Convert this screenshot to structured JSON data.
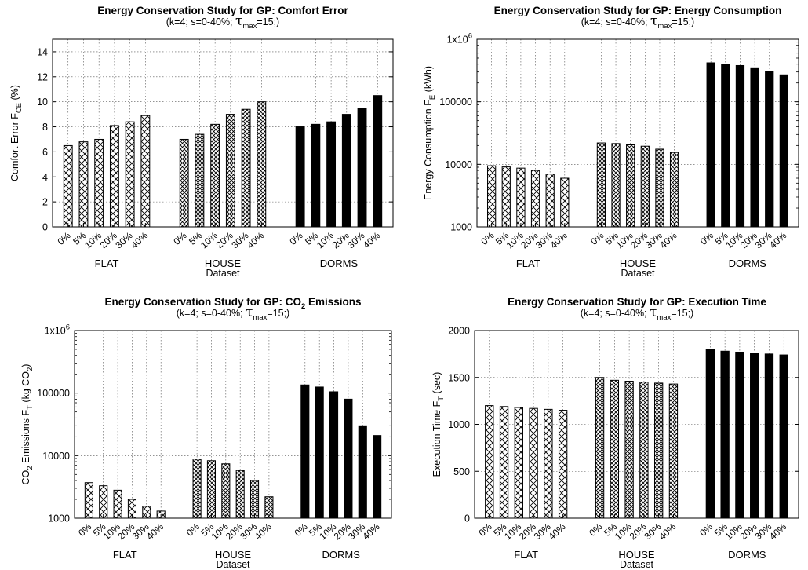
{
  "chart_data": [
    {
      "type": "bar",
      "title": "Energy Conservation Study for GP: Comfort Error",
      "subtitle": {
        "pre": "(k=4; s=0-40%; ",
        "tau": "τ",
        "sub": "max",
        "post": "=15;)"
      },
      "ylabel": {
        "main": "Comfort Error F",
        "sub": "CE",
        "post": " (%)"
      },
      "xlabel": "Dataset",
      "scale": "linear",
      "ylim": [
        0,
        15
      ],
      "yticks": [
        0,
        2,
        4,
        6,
        8,
        10,
        12,
        14
      ],
      "ytick_labels": [
        "0",
        "2",
        "4",
        "6",
        "8",
        "10",
        "12",
        "14"
      ],
      "groups": [
        {
          "name": "FLAT",
          "fill": "hatch-sparse",
          "categories": [
            "0%",
            "5%",
            "10%",
            "20%",
            "30%",
            "40%"
          ],
          "values": [
            6.5,
            6.8,
            7.0,
            8.1,
            8.4,
            8.9
          ]
        },
        {
          "name": "HOUSE",
          "fill": "hatch-dense",
          "categories": [
            "0%",
            "5%",
            "10%",
            "20%",
            "30%",
            "40%"
          ],
          "values": [
            7.0,
            7.4,
            8.2,
            9.0,
            9.4,
            10.0
          ]
        },
        {
          "name": "DORMS",
          "fill": "solid",
          "categories": [
            "0%",
            "5%",
            "10%",
            "20%",
            "30%",
            "40%"
          ],
          "values": [
            8.0,
            8.2,
            8.4,
            9.0,
            9.5,
            10.5
          ]
        }
      ],
      "grid": true
    },
    {
      "type": "bar",
      "title": "Energy Conservation Study for GP: Energy Consumption",
      "subtitle": {
        "pre": "(k=4; s=0-40%; ",
        "tau": "τ",
        "sub": "max",
        "post": "=15;)"
      },
      "ylabel": {
        "main": "Energy Consumption F",
        "sub": "E",
        "post": " (kWh)"
      },
      "xlabel": "Dataset",
      "scale": "log",
      "ylim": [
        1000,
        1000000
      ],
      "yticks": [
        1000,
        10000,
        100000,
        1000000
      ],
      "ytick_labels": [
        "1000",
        "10000",
        "100000",
        "1x10"
      ],
      "ytick_sup": [
        "",
        "",
        "",
        "6"
      ],
      "groups": [
        {
          "name": "FLAT",
          "fill": "hatch-sparse",
          "categories": [
            "0%",
            "5%",
            "10%",
            "20%",
            "30%",
            "40%"
          ],
          "values": [
            9500,
            9100,
            8700,
            8000,
            7000,
            6000
          ]
        },
        {
          "name": "HOUSE",
          "fill": "hatch-dense",
          "categories": [
            "0%",
            "5%",
            "10%",
            "20%",
            "30%",
            "40%"
          ],
          "values": [
            22000,
            21500,
            20500,
            19500,
            17500,
            15500
          ]
        },
        {
          "name": "DORMS",
          "fill": "solid",
          "categories": [
            "0%",
            "5%",
            "10%",
            "20%",
            "30%",
            "40%"
          ],
          "values": [
            420000,
            400000,
            380000,
            350000,
            310000,
            270000
          ]
        }
      ],
      "grid": true
    },
    {
      "type": "bar",
      "title": {
        "pre": "Energy Conservation Study for GP: CO",
        "sub": "2",
        "post": " Emissions"
      },
      "subtitle": {
        "pre": "(k=4; s=0-40%; ",
        "tau": "τ",
        "sub": "max",
        "post": "=15;)"
      },
      "ylabel": {
        "main": "CO",
        "sub": "2",
        "mid": " Emissions F",
        "sub2": "T",
        "post": " (kg CO",
        "sub3": "2",
        "end": ")"
      },
      "xlabel": "Dataset",
      "scale": "log",
      "ylim": [
        1000,
        1000000
      ],
      "yticks": [
        1000,
        10000,
        100000,
        1000000
      ],
      "ytick_labels": [
        "1000",
        "10000",
        "100000",
        "1x10"
      ],
      "ytick_sup": [
        "",
        "",
        "",
        "6"
      ],
      "groups": [
        {
          "name": "FLAT",
          "fill": "hatch-sparse",
          "categories": [
            "0%",
            "5%",
            "10%",
            "20%",
            "30%",
            "40%"
          ],
          "values": [
            3700,
            3300,
            2800,
            2000,
            1550,
            1300
          ]
        },
        {
          "name": "HOUSE",
          "fill": "hatch-dense",
          "categories": [
            "0%",
            "5%",
            "10%",
            "20%",
            "30%",
            "40%"
          ],
          "values": [
            8800,
            8300,
            7400,
            5800,
            4000,
            2200
          ]
        },
        {
          "name": "DORMS",
          "fill": "solid",
          "categories": [
            "0%",
            "5%",
            "10%",
            "20%",
            "30%",
            "40%"
          ],
          "values": [
            135000,
            125000,
            105000,
            80000,
            30000,
            21000
          ]
        }
      ],
      "grid": true
    },
    {
      "type": "bar",
      "title": "Energy Conservation Study for GP: Execution Time",
      "subtitle": {
        "pre": "(k=4; s=0-40%; ",
        "tau": "τ",
        "sub": "max",
        "post": "=15;)"
      },
      "ylabel": {
        "main": "Execution Time F",
        "sub": "T",
        "post": " (sec)"
      },
      "xlabel": "Dataset",
      "scale": "linear",
      "ylim": [
        0,
        2000
      ],
      "yticks": [
        0,
        500,
        1000,
        1500,
        2000
      ],
      "ytick_labels": [
        "0",
        "500",
        "1000",
        "1500",
        "2000"
      ],
      "groups": [
        {
          "name": "FLAT",
          "fill": "hatch-sparse",
          "categories": [
            "0%",
            "5%",
            "10%",
            "20%",
            "30%",
            "40%"
          ],
          "values": [
            1200,
            1190,
            1180,
            1170,
            1160,
            1150
          ]
        },
        {
          "name": "HOUSE",
          "fill": "hatch-dense",
          "categories": [
            "0%",
            "5%",
            "10%",
            "20%",
            "30%",
            "40%"
          ],
          "values": [
            1500,
            1470,
            1460,
            1450,
            1440,
            1430
          ]
        },
        {
          "name": "DORMS",
          "fill": "solid",
          "categories": [
            "0%",
            "5%",
            "10%",
            "20%",
            "30%",
            "40%"
          ],
          "values": [
            1800,
            1780,
            1770,
            1760,
            1750,
            1740
          ]
        }
      ],
      "grid": true
    }
  ],
  "colors": {
    "bar_stroke": "#000000",
    "solid_fill": "#000000",
    "hatch_bg": "#ffffff",
    "grid": "#555555"
  }
}
